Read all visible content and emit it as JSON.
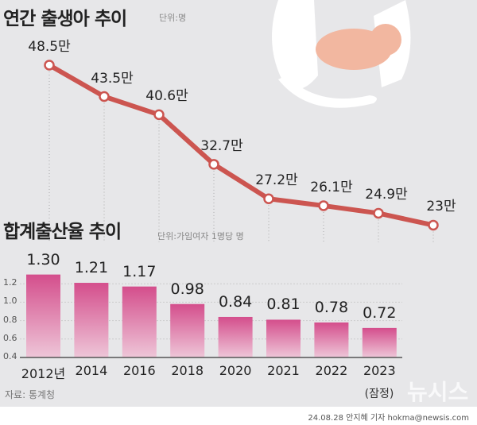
{
  "titles": {
    "births": "연간 출생아 추이",
    "births_unit": "단위:명",
    "tfr": "합계출산율 추이",
    "tfr_unit": "단위:가임여자 1명당 명"
  },
  "source": "자료: 통계청",
  "credit": "24.08.28 안지혜 기자 hokma@newsis.com",
  "watermark": "뉴시스",
  "colors": {
    "line": "#cc5550",
    "bar_top": "#d44e8c",
    "bar_bottom": "#eec6d8",
    "background": "#e7e7e9"
  },
  "chart_data": [
    {
      "type": "line",
      "title": "연간 출생아 추이",
      "unit": "단위:명",
      "categories": [
        "2012",
        "2014",
        "2016",
        "2018",
        "2020",
        "2021",
        "2022",
        "2023"
      ],
      "values": [
        48.5,
        43.5,
        40.6,
        32.7,
        27.2,
        26.1,
        24.9,
        23
      ],
      "labels": [
        "48.5만",
        "43.5만",
        "40.6만",
        "32.7만",
        "27.2만",
        "26.1만",
        "24.9만",
        "23만"
      ]
    },
    {
      "type": "bar",
      "title": "합계출산율 추이",
      "unit": "단위:가임여자 1명당 명",
      "categories": [
        "2012년",
        "2014",
        "2016",
        "2018",
        "2020",
        "2021",
        "2022",
        "2023"
      ],
      "category_note": "(잠정)",
      "values": [
        1.3,
        1.21,
        1.17,
        0.98,
        0.84,
        0.81,
        0.78,
        0.72
      ],
      "labels": [
        "1.30",
        "1.21",
        "1.17",
        "0.98",
        "0.84",
        "0.81",
        "0.78",
        "0.72"
      ],
      "yticks": [
        "0.4",
        "0.6",
        "0.8",
        "1.0",
        "1.2"
      ],
      "ylim": [
        0.4,
        1.3
      ],
      "grid": true
    }
  ]
}
